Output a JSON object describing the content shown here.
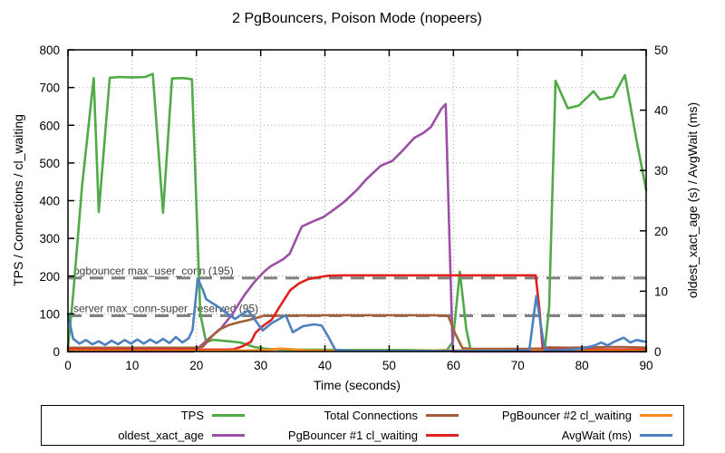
{
  "chart_data": {
    "type": "line",
    "title": "2 PgBouncers, Poison Mode (nopeers)",
    "x_axis": {
      "label": "Time (seconds)",
      "min": 0,
      "max": 90,
      "step": 10
    },
    "y_left": {
      "label": "TPS / Connections / cl_waiting",
      "min": 0,
      "max": 800,
      "step": 100
    },
    "y_right": {
      "label": "oldest_xact_age (s) / AvgWait (ms)",
      "min": 0,
      "max": 50,
      "step": 10
    },
    "grid": true,
    "legend_position": "bottom",
    "threshold_color": "#808080",
    "thresholds": [
      {
        "label": "pgbouncer max_user_conn (195)",
        "value": 195
      },
      {
        "label": "server max_conn-super_reserved (95)",
        "value": 95
      }
    ],
    "series": [
      {
        "name": "TPS",
        "axis": "left",
        "color": "#52a948",
        "points": [
          [
            0,
            10
          ],
          [
            0.8,
            150
          ],
          [
            2.2,
            440
          ],
          [
            4,
            725
          ],
          [
            4.8,
            370
          ],
          [
            6.5,
            726
          ],
          [
            8,
            728
          ],
          [
            10,
            727
          ],
          [
            12,
            728
          ],
          [
            13.2,
            736
          ],
          [
            14.8,
            368
          ],
          [
            16.2,
            724
          ],
          [
            18,
            725
          ],
          [
            19.3,
            722
          ],
          [
            20.6,
            100
          ],
          [
            21.5,
            25
          ],
          [
            22.6,
            31
          ],
          [
            24.5,
            28
          ],
          [
            26.8,
            24
          ],
          [
            29,
            12
          ],
          [
            31,
            7
          ],
          [
            34,
            5
          ],
          [
            38,
            5
          ],
          [
            42,
            4
          ],
          [
            47,
            4
          ],
          [
            52,
            4
          ],
          [
            57,
            3
          ],
          [
            59,
            4
          ],
          [
            59.9,
            25
          ],
          [
            61,
            212
          ],
          [
            62,
            60
          ],
          [
            62.7,
            3
          ],
          [
            64,
            1
          ],
          [
            68,
            1
          ],
          [
            72,
            1
          ],
          [
            74.2,
            2
          ],
          [
            74.9,
            120
          ],
          [
            75.9,
            718
          ],
          [
            77.8,
            645
          ],
          [
            79.5,
            652
          ],
          [
            81.8,
            690
          ],
          [
            82.8,
            668
          ],
          [
            84.9,
            676
          ],
          [
            86.7,
            733
          ],
          [
            88.5,
            560
          ],
          [
            90,
            428
          ]
        ]
      },
      {
        "name": "oldest_xact_age",
        "axis": "right",
        "color": "#9c50a5",
        "points": [
          [
            0,
            0
          ],
          [
            6,
            0
          ],
          [
            12,
            0
          ],
          [
            19.5,
            0
          ],
          [
            20.5,
            0.8
          ],
          [
            22,
            2.2
          ],
          [
            23.7,
            3.7
          ],
          [
            25.5,
            6.1
          ],
          [
            27.5,
            9.4
          ],
          [
            29,
            11.5
          ],
          [
            30.5,
            13.2
          ],
          [
            31.5,
            14.1
          ],
          [
            33.5,
            15.3
          ],
          [
            34.5,
            16.2
          ],
          [
            36.4,
            20.7
          ],
          [
            38,
            21.5
          ],
          [
            39.8,
            22.3
          ],
          [
            41.5,
            23.6
          ],
          [
            43,
            24.8
          ],
          [
            44.9,
            26.7
          ],
          [
            46.5,
            28.6
          ],
          [
            48.7,
            30.8
          ],
          [
            50.5,
            31.6
          ],
          [
            52,
            33.2
          ],
          [
            53.9,
            35.4
          ],
          [
            55.3,
            36.2
          ],
          [
            56.5,
            37.2
          ],
          [
            58.1,
            40.2
          ],
          [
            58.8,
            41
          ],
          [
            59.4,
            18
          ],
          [
            59.9,
            0
          ],
          [
            63,
            0
          ],
          [
            70,
            0
          ],
          [
            80,
            0
          ],
          [
            90,
            0
          ]
        ]
      },
      {
        "name": "Total Connections",
        "axis": "left",
        "color": "#a2603a",
        "points": [
          [
            0,
            10
          ],
          [
            6,
            10
          ],
          [
            12,
            10
          ],
          [
            20,
            10
          ],
          [
            21,
            13
          ],
          [
            22.5,
            42
          ],
          [
            23.5,
            58
          ],
          [
            25,
            70
          ],
          [
            26.5,
            77
          ],
          [
            28,
            83
          ],
          [
            29.3,
            89
          ],
          [
            30.5,
            95
          ],
          [
            34,
            95
          ],
          [
            40,
            96
          ],
          [
            46,
            96
          ],
          [
            52,
            96
          ],
          [
            57,
            96
          ],
          [
            59.2,
            94
          ],
          [
            60.2,
            50
          ],
          [
            61.4,
            9
          ],
          [
            63,
            7
          ],
          [
            67,
            7
          ],
          [
            71,
            7
          ],
          [
            73.8,
            8
          ],
          [
            74.8,
            11
          ],
          [
            78,
            10
          ],
          [
            81,
            11
          ],
          [
            84,
            12
          ],
          [
            86.5,
            12
          ],
          [
            89,
            11
          ],
          [
            90,
            10
          ]
        ]
      },
      {
        "name": "PgBouncer #1 cl_waiting",
        "axis": "left",
        "color": "#e12120",
        "points": [
          [
            0,
            5
          ],
          [
            6,
            5
          ],
          [
            12,
            5
          ],
          [
            18,
            5
          ],
          [
            22,
            5
          ],
          [
            24.5,
            5
          ],
          [
            25.8,
            6
          ],
          [
            27.2,
            14
          ],
          [
            28.5,
            26
          ],
          [
            29.2,
            50
          ],
          [
            30.5,
            70
          ],
          [
            31.7,
            84
          ],
          [
            33,
            120
          ],
          [
            34.6,
            163
          ],
          [
            36,
            181
          ],
          [
            37.4,
            192
          ],
          [
            39,
            197
          ],
          [
            40.6,
            201
          ],
          [
            43,
            202
          ],
          [
            48,
            202
          ],
          [
            53,
            202
          ],
          [
            58,
            202
          ],
          [
            63,
            202
          ],
          [
            68,
            202
          ],
          [
            72.8,
            202
          ],
          [
            73.4,
            110
          ],
          [
            73.9,
            6
          ],
          [
            76,
            5
          ],
          [
            80,
            5
          ],
          [
            85,
            5
          ],
          [
            90,
            5
          ]
        ]
      },
      {
        "name": "PgBouncer #2 cl_waiting",
        "axis": "left",
        "color": "#ff8c1a",
        "points": [
          [
            0,
            2
          ],
          [
            6,
            2
          ],
          [
            12,
            2
          ],
          [
            18,
            2
          ],
          [
            24,
            2
          ],
          [
            28,
            3
          ],
          [
            31,
            4
          ],
          [
            33,
            8
          ],
          [
            35,
            6
          ],
          [
            37,
            3
          ],
          [
            40,
            2
          ],
          [
            46,
            2
          ],
          [
            52,
            2
          ],
          [
            58,
            3
          ],
          [
            61,
            3
          ],
          [
            65,
            2
          ],
          [
            70,
            2
          ],
          [
            75,
            2
          ],
          [
            80,
            2
          ],
          [
            85,
            2
          ],
          [
            90,
            2
          ]
        ]
      },
      {
        "name": "AvgWait (ms)",
        "axis": "right",
        "color": "#4d80bf",
        "points": [
          [
            0,
            6.2
          ],
          [
            0.8,
            2.1
          ],
          [
            1.8,
            1.3
          ],
          [
            2.8,
            1.9
          ],
          [
            3.8,
            1.2
          ],
          [
            4.8,
            1.7
          ],
          [
            5.8,
            1.1
          ],
          [
            6.8,
            1.8
          ],
          [
            7.8,
            1.2
          ],
          [
            8.8,
            1.9
          ],
          [
            9.8,
            1.3
          ],
          [
            10.8,
            2
          ],
          [
            11.8,
            1.3
          ],
          [
            12.8,
            2
          ],
          [
            13.8,
            1.4
          ],
          [
            14.8,
            2.1
          ],
          [
            15.8,
            1.4
          ],
          [
            16.8,
            2.4
          ],
          [
            17.8,
            1.5
          ],
          [
            18.8,
            2.2
          ],
          [
            19.4,
            3.6
          ],
          [
            20.2,
            12.1
          ],
          [
            21,
            10.2
          ],
          [
            21.5,
            8.7
          ],
          [
            22.5,
            8
          ],
          [
            23.7,
            7.2
          ],
          [
            24.5,
            6.5
          ],
          [
            26,
            5.4
          ],
          [
            27,
            6.1
          ],
          [
            28,
            6.8
          ],
          [
            29,
            5.4
          ],
          [
            30.3,
            3.5
          ],
          [
            31.7,
            4.7
          ],
          [
            33.9,
            6
          ],
          [
            35,
            3.2
          ],
          [
            36.6,
            4.2
          ],
          [
            38.3,
            4.5
          ],
          [
            39.5,
            4.3
          ],
          [
            40.5,
            2.5
          ],
          [
            41.6,
            0.3
          ],
          [
            44,
            0.1
          ],
          [
            48,
            0.1
          ],
          [
            53,
            0.1
          ],
          [
            58,
            0.1
          ],
          [
            63,
            0.1
          ],
          [
            68,
            0.1
          ],
          [
            71.8,
            0.2
          ],
          [
            72.9,
            9.2
          ],
          [
            74.2,
            0.3
          ],
          [
            76,
            0.2
          ],
          [
            78,
            0.3
          ],
          [
            80,
            0.5
          ],
          [
            82,
            1
          ],
          [
            83,
            1.5
          ],
          [
            84,
            1
          ],
          [
            85,
            1.6
          ],
          [
            86.5,
            2.3
          ],
          [
            87.5,
            1.5
          ],
          [
            88.5,
            1.9
          ],
          [
            90,
            1.6
          ]
        ]
      }
    ],
    "legend": {
      "entries": [
        {
          "label": "TPS",
          "color": "#52a948"
        },
        {
          "label": "Total Connections",
          "color": "#a2603a"
        },
        {
          "label": "PgBouncer #2 cl_waiting",
          "color": "#ff8c1a"
        },
        {
          "label": "oldest_xact_age",
          "color": "#9c50a5"
        },
        {
          "label": "PgBouncer #1 cl_waiting",
          "color": "#e12120"
        },
        {
          "label": "AvgWait (ms)",
          "color": "#4d80bf"
        }
      ]
    }
  }
}
